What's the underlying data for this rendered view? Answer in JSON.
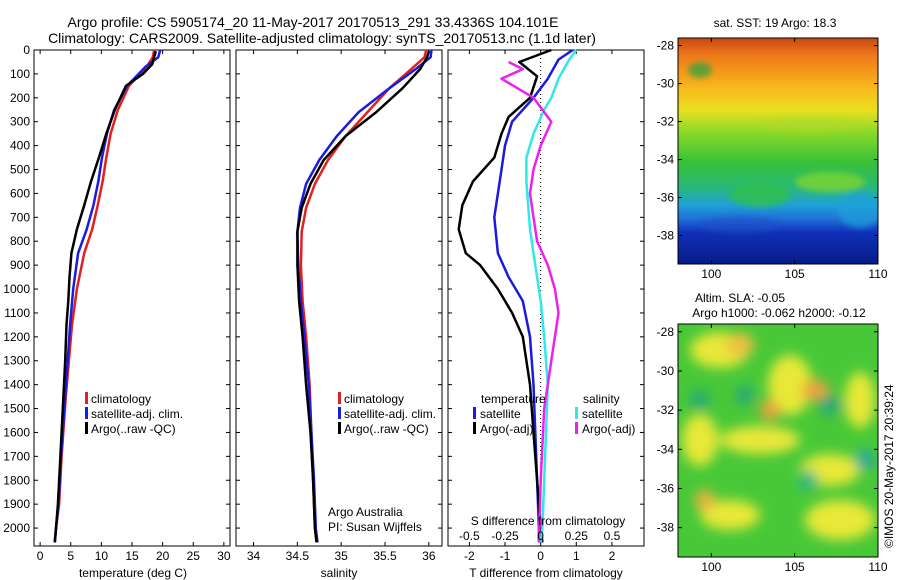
{
  "title_line1": "Argo profile: CS 5905174_20 11-May-2017 20170513_291 33.4336S 104.101E",
  "title_line2": "Climatology: CARS2009. Satellite-adjusted climatology: synTS_20170513.nc (1.1d later)",
  "side_label": "©IMOS 20-May-2017 20:39:24",
  "colors": {
    "climatology": "#e32020",
    "satellite": "#1a1ae0",
    "argo": "#000000",
    "sal_satellite": "#30e8e8",
    "sal_argo": "#ee20ee"
  },
  "chart_data": [
    {
      "type": "line",
      "id": "temperature",
      "xlabel": "temperature (deg C)",
      "xlim": [
        -1,
        31
      ],
      "ylim": [
        0,
        2075
      ],
      "y_inverted": true,
      "xticks": [
        0,
        5,
        10,
        15,
        20,
        25,
        30
      ],
      "yticks": [
        0,
        100,
        200,
        300,
        400,
        500,
        600,
        700,
        800,
        900,
        1000,
        1100,
        1200,
        1300,
        1400,
        1500,
        1600,
        1700,
        1800,
        1900,
        2000
      ],
      "legend": [
        "climatology",
        "satellite-adj. clim.",
        "Argo(..raw -QC)"
      ],
      "series": [
        {
          "name": "climatology",
          "color": "#e32020",
          "x": [
            18.6,
            18.4,
            17.4,
            14.5,
            12.7,
            11.5,
            10.8,
            10.2,
            9.4,
            8.5,
            7.2,
            6,
            5.2,
            4.7,
            4.2,
            3.5,
            3.1,
            2.6,
            2.4
          ],
          "y": [
            0,
            30,
            70,
            150,
            250,
            350,
            450,
            550,
            650,
            750,
            850,
            1000,
            1150,
            1300,
            1450,
            1700,
            1900,
            2000,
            2060
          ]
        },
        {
          "name": "satellite-adj. clim.",
          "color": "#1a1ae0",
          "x": [
            19.6,
            19.3,
            17.2,
            14.2,
            12.1,
            10.9,
            10.1,
            9.5,
            8.7,
            7.6,
            6.2,
            5.4,
            4.9,
            4.5,
            4.1,
            3.4,
            3,
            2.6,
            2.4
          ],
          "y": [
            0,
            30,
            70,
            150,
            250,
            350,
            450,
            550,
            650,
            750,
            850,
            1000,
            1150,
            1300,
            1450,
            1700,
            1900,
            2000,
            2060
          ]
        },
        {
          "name": "Argo(..raw -QC)",
          "color": "#000000",
          "x": [
            18.9,
            18.6,
            18.3,
            16.8,
            14,
            12.2,
            10.8,
            9.6,
            8.3,
            7.2,
            6,
            5.1,
            4.8,
            4.6,
            4.3,
            4.1,
            3.8,
            3.4,
            2.9,
            2.6,
            2.4
          ],
          "y": [
            5,
            30,
            60,
            100,
            150,
            250,
            350,
            450,
            550,
            650,
            750,
            850,
            950,
            1050,
            1150,
            1300,
            1450,
            1650,
            1900,
            2000,
            2060
          ]
        }
      ]
    },
    {
      "type": "line",
      "id": "salinity",
      "xlabel": "salinity",
      "xlim": [
        33.8,
        36.15
      ],
      "ylim": [
        0,
        2075
      ],
      "y_inverted": true,
      "xticks": [
        34,
        34.5,
        35,
        35.5,
        36
      ],
      "legend": [
        "climatology",
        "satellite-adj. clim.",
        "Argo(..raw -QC)"
      ],
      "annotation": [
        "Argo Australia",
        "PI: Susan Wijffels"
      ],
      "series": [
        {
          "name": "climatology",
          "color": "#e32020",
          "x": [
            35.97,
            35.95,
            35.8,
            35.55,
            35.3,
            35.05,
            34.85,
            34.7,
            34.6,
            34.55,
            34.54,
            34.56,
            34.6,
            34.64,
            34.66,
            34.68,
            34.7,
            34.72
          ],
          "y": [
            0,
            30,
            80,
            160,
            260,
            360,
            460,
            560,
            660,
            760,
            900,
            1050,
            1200,
            1400,
            1600,
            1800,
            2000,
            2060
          ]
        },
        {
          "name": "satellite-adj. clim.",
          "color": "#1a1ae0",
          "x": [
            36.03,
            36.02,
            35.85,
            35.55,
            35.2,
            34.95,
            34.75,
            34.6,
            34.53,
            34.5,
            34.51,
            34.54,
            34.58,
            34.63,
            34.66,
            34.69,
            34.71,
            34.73
          ],
          "y": [
            0,
            30,
            80,
            160,
            260,
            360,
            460,
            560,
            660,
            760,
            900,
            1050,
            1200,
            1400,
            1600,
            1800,
            2000,
            2060
          ]
        },
        {
          "name": "Argo(..raw -QC)",
          "color": "#000000",
          "x": [
            36,
            35.98,
            35.9,
            35.7,
            35.4,
            35.05,
            34.8,
            34.65,
            34.55,
            34.5,
            34.5,
            34.52,
            34.56,
            34.6,
            34.65,
            34.68,
            34.7,
            34.72
          ],
          "y": [
            5,
            30,
            80,
            160,
            260,
            360,
            460,
            560,
            660,
            760,
            900,
            1050,
            1200,
            1400,
            1600,
            1800,
            2000,
            2060
          ]
        }
      ]
    },
    {
      "type": "line",
      "id": "difference",
      "xlabel": "T difference from climatology",
      "xlabel_top": "S difference from climatology",
      "xlim": [
        -2.6,
        2.9
      ],
      "ylim": [
        0,
        2075
      ],
      "y_inverted": true,
      "xticks": [
        -2,
        -1,
        0,
        1,
        2
      ],
      "xticks_s": [
        {
          "label": "-0.5",
          "x": -2
        },
        {
          "label": "-0.25",
          "x": -1
        },
        {
          "label": "0",
          "x": 0
        },
        {
          "label": "0.25",
          "x": 1
        },
        {
          "label": "0.5",
          "x": 2
        }
      ],
      "legend_headers": [
        "temperature",
        "salinity"
      ],
      "legend": [
        "satellite",
        "Argo(-adj)",
        "satellite",
        "Argo(-adj)"
      ],
      "series": [
        {
          "name": "T satellite",
          "color": "#1a1ae0",
          "x": [
            0.9,
            0.5,
            0.2,
            -0.2,
            -0.5,
            -0.8,
            -1,
            -1.1,
            -1.2,
            -1.3,
            -1.2,
            -0.9,
            -0.5,
            -0.3,
            -0.2,
            -0.15,
            -0.1,
            -0.05,
            -0.05
          ],
          "y": [
            0,
            40,
            120,
            200,
            250,
            300,
            400,
            500,
            600,
            700,
            850,
            950,
            1050,
            1200,
            1400,
            1600,
            1800,
            2000,
            2060
          ]
        },
        {
          "name": "T Argo(-adj)",
          "color": "#000000",
          "x": [
            0.3,
            -0.6,
            -0.1,
            -0.3,
            -0.9,
            -1.1,
            -1.3,
            -1.9,
            -2.2,
            -2.3,
            -2.1,
            -1.7,
            -1.2,
            -0.8,
            -0.5,
            -0.3,
            -0.2,
            -0.1,
            0,
            0.05
          ],
          "y": [
            0,
            50,
            110,
            200,
            280,
            350,
            450,
            550,
            650,
            750,
            850,
            900,
            1000,
            1100,
            1200,
            1400,
            1600,
            1800,
            2000,
            2060
          ]
        },
        {
          "name": "S satellite",
          "color": "#30e8e8",
          "x": [
            1,
            0.8,
            0.5,
            0.3,
            0.1,
            -0.2,
            -0.4,
            -0.4,
            -0.35,
            -0.3,
            -0.2,
            -0.1,
            0,
            0.1,
            0.2,
            0.15,
            0.1,
            0.05,
            0
          ],
          "y": [
            0,
            40,
            120,
            200,
            250,
            350,
            450,
            550,
            650,
            750,
            850,
            950,
            1050,
            1200,
            1400,
            1600,
            1800,
            2000,
            2060
          ]
        },
        {
          "name": "S Argo(-adj)",
          "color": "#ee20ee",
          "x": [
            -0.9,
            -0.5,
            -1.1,
            -0.2,
            0.3,
            0,
            -0.2,
            -0.3,
            -0.2,
            -0.1,
            0.2,
            0.4,
            0.5,
            0.3,
            0.1,
            0,
            -0.05
          ],
          "y": [
            50,
            80,
            120,
            200,
            300,
            400,
            500,
            600,
            700,
            800,
            900,
            1000,
            1100,
            1300,
            1500,
            1800,
            2060
          ]
        }
      ]
    },
    {
      "type": "heatmap",
      "id": "sst_map",
      "title": "sat. SST: 19 Argo: 18.3",
      "xlim": [
        98,
        110
      ],
      "ylim": [
        -39.5,
        -27.6
      ],
      "xticks": [
        100,
        105,
        110
      ],
      "yticks": [
        -28,
        -30,
        -32,
        -34,
        -36,
        -38
      ]
    },
    {
      "type": "heatmap",
      "id": "sla_map",
      "title": [
        "Altim. SLA: -0.05",
        "Argo h1000: -0.062 h2000: -0.12"
      ],
      "xlim": [
        98,
        110
      ],
      "ylim": [
        -39.5,
        -27.6
      ],
      "xticks": [
        100,
        105,
        110
      ],
      "yticks": [
        -28,
        -30,
        -32,
        -34,
        -36,
        -38
      ]
    }
  ]
}
